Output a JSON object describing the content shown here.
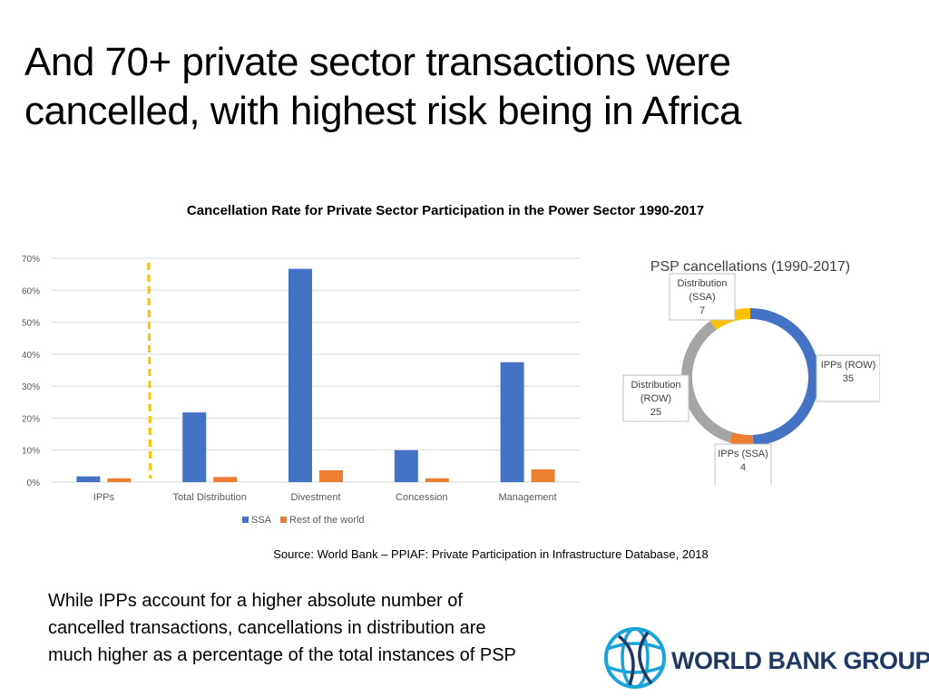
{
  "slide": {
    "title_lines": [
      "And 70+ private sector transactions were",
      "cancelled, with highest risk being in Africa"
    ],
    "source": "Source: World Bank – PPIAF: Private Participation in Infrastructure Database, 2018",
    "caption_lines": [
      "While IPPs account for a higher absolute number of",
      "cancelled transactions, cancellations in distribution are",
      "much higher as a percentage of the total instances of PSP"
    ],
    "logo_text": "WORLD BANK GROUP"
  },
  "colors": {
    "ssa": "#4472c4",
    "row": "#ed7d31",
    "gray": "#a5a5a5",
    "yellow": "#ffc000",
    "divider": "#ffc000"
  },
  "chart_data": [
    {
      "type": "bar",
      "title": "Cancellation Rate for Private Sector Participation in the Power Sector 1990-2017",
      "categories": [
        "IPPs",
        "Total Distribution",
        "Divestment",
        "Concession",
        "Management"
      ],
      "series": [
        {
          "name": "SSA",
          "values": [
            0.018,
            0.218,
            0.667,
            0.1,
            0.375
          ]
        },
        {
          "name": "Rest of the world",
          "values": [
            0.012,
            0.016,
            0.037,
            0.012,
            0.04
          ]
        }
      ],
      "ylim": [
        0,
        0.7
      ],
      "yticks": [
        0,
        0.1,
        0.2,
        0.3,
        0.4,
        0.5,
        0.6,
        0.7
      ],
      "ytick_labels": [
        "0%",
        "10%",
        "20%",
        "30%",
        "40%",
        "50%",
        "60%",
        "70%"
      ],
      "grid": true,
      "legend": "bottom",
      "annotation": "dashed vertical divider between IPPs and Total Distribution"
    },
    {
      "type": "pie",
      "style": "donut",
      "title": "PSP cancellations (1990-2017)",
      "slices": [
        {
          "label": "IPPs (ROW)",
          "value": 35,
          "color": "#4472c4"
        },
        {
          "label": "IPPs (SSA)",
          "value": 4,
          "color": "#ed7d31"
        },
        {
          "label": "Distribution (ROW)",
          "value": 25,
          "color": "#a5a5a5"
        },
        {
          "label": "Distribution (SSA)",
          "value": 7,
          "color": "#ffc000"
        }
      ]
    }
  ]
}
